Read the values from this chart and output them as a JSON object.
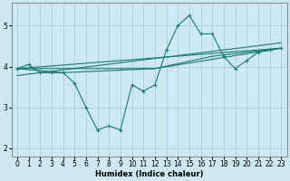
{
  "xlabel": "Humidex (Indice chaleur)",
  "background_color": "#cde8f0",
  "grid_color": "#a8d0dc",
  "line_color": "#1a7a6e",
  "xlim": [
    -0.5,
    23.5
  ],
  "ylim": [
    1.8,
    5.55
  ],
  "yticks": [
    2,
    3,
    4,
    5
  ],
  "xticks": [
    0,
    1,
    2,
    3,
    4,
    5,
    6,
    7,
    8,
    9,
    10,
    11,
    12,
    13,
    14,
    15,
    16,
    17,
    18,
    19,
    20,
    21,
    22,
    23
  ],
  "main_x": [
    0,
    1,
    2,
    3,
    4,
    5,
    6,
    7,
    8,
    9,
    10,
    11,
    12,
    13,
    14,
    15,
    16,
    17,
    18,
    19,
    20,
    21,
    22,
    23
  ],
  "main_y": [
    3.95,
    4.05,
    3.85,
    3.85,
    3.85,
    3.6,
    3.0,
    2.45,
    2.55,
    2.45,
    3.55,
    3.4,
    3.55,
    4.4,
    5.0,
    5.25,
    4.8,
    4.8,
    4.25,
    3.95,
    4.15,
    4.35,
    4.4,
    4.45
  ],
  "line1_x": [
    0,
    23
  ],
  "line1_y": [
    3.95,
    4.45
  ],
  "line2_x": [
    0,
    23
  ],
  "line2_y": [
    3.78,
    4.58
  ],
  "line3_x": [
    0,
    11,
    12,
    23
  ],
  "line3_y": [
    3.95,
    3.95,
    3.95,
    4.45
  ],
  "line4_x": [
    0,
    4,
    12,
    17,
    23
  ],
  "line4_y": [
    3.95,
    3.85,
    3.95,
    4.25,
    4.45
  ]
}
